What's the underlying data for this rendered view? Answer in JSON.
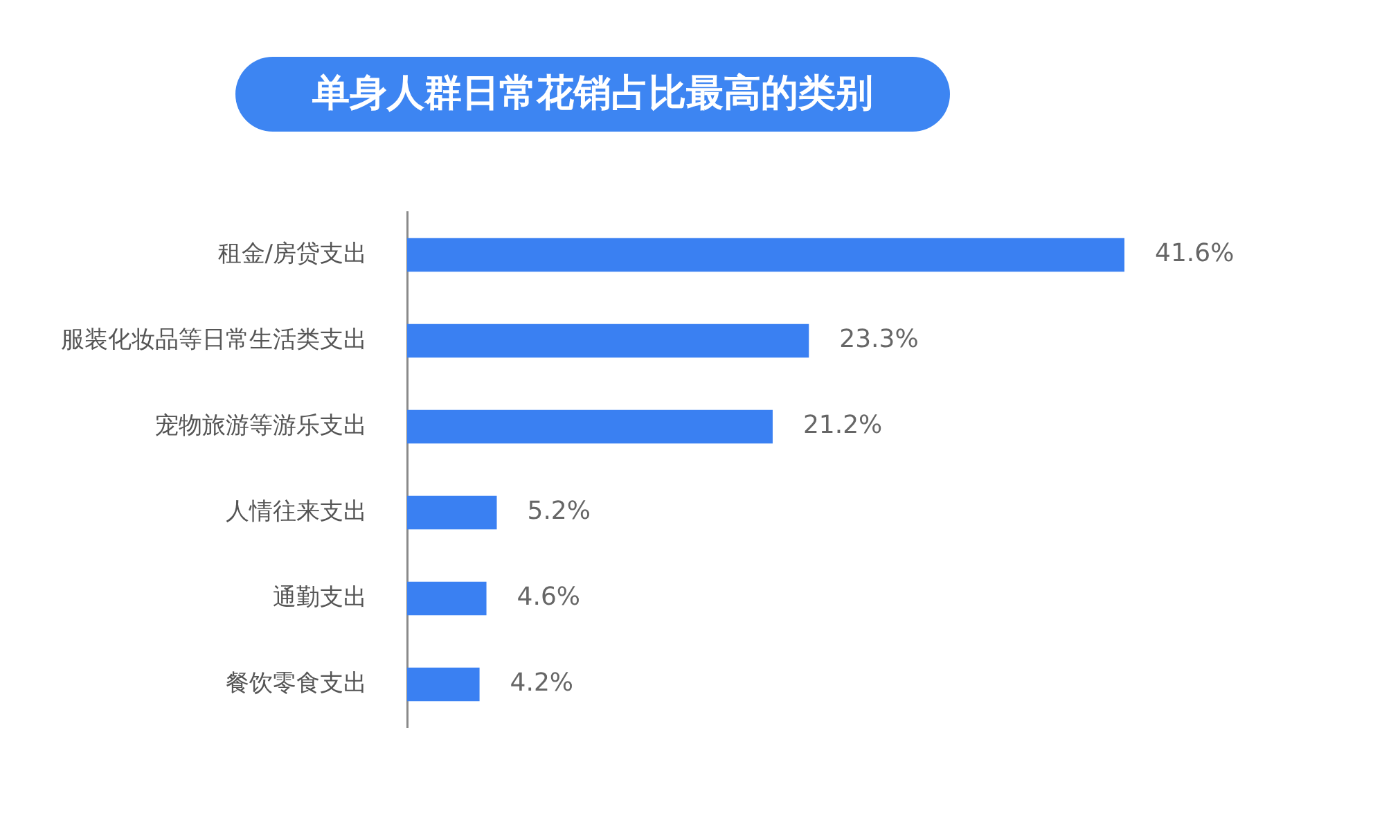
{
  "chart_data": {
    "type": "bar",
    "orientation": "horizontal",
    "title": "单身人群日常花销占比最高的类别",
    "categories": [
      "租金/房贷支出",
      "服装化妆品等日常生活类支出",
      "宠物旅游等游乐支出",
      "人情往来支出",
      "通勤支出",
      "餐饮零食支出"
    ],
    "values": [
      41.6,
      23.3,
      21.2,
      5.2,
      4.6,
      4.2
    ],
    "value_labels": [
      "41.6%",
      "23.3%",
      "21.2%",
      "5.2%",
      "4.6%",
      "4.2%"
    ],
    "color": "#3a80f2",
    "tick_labels": "y"
  }
}
